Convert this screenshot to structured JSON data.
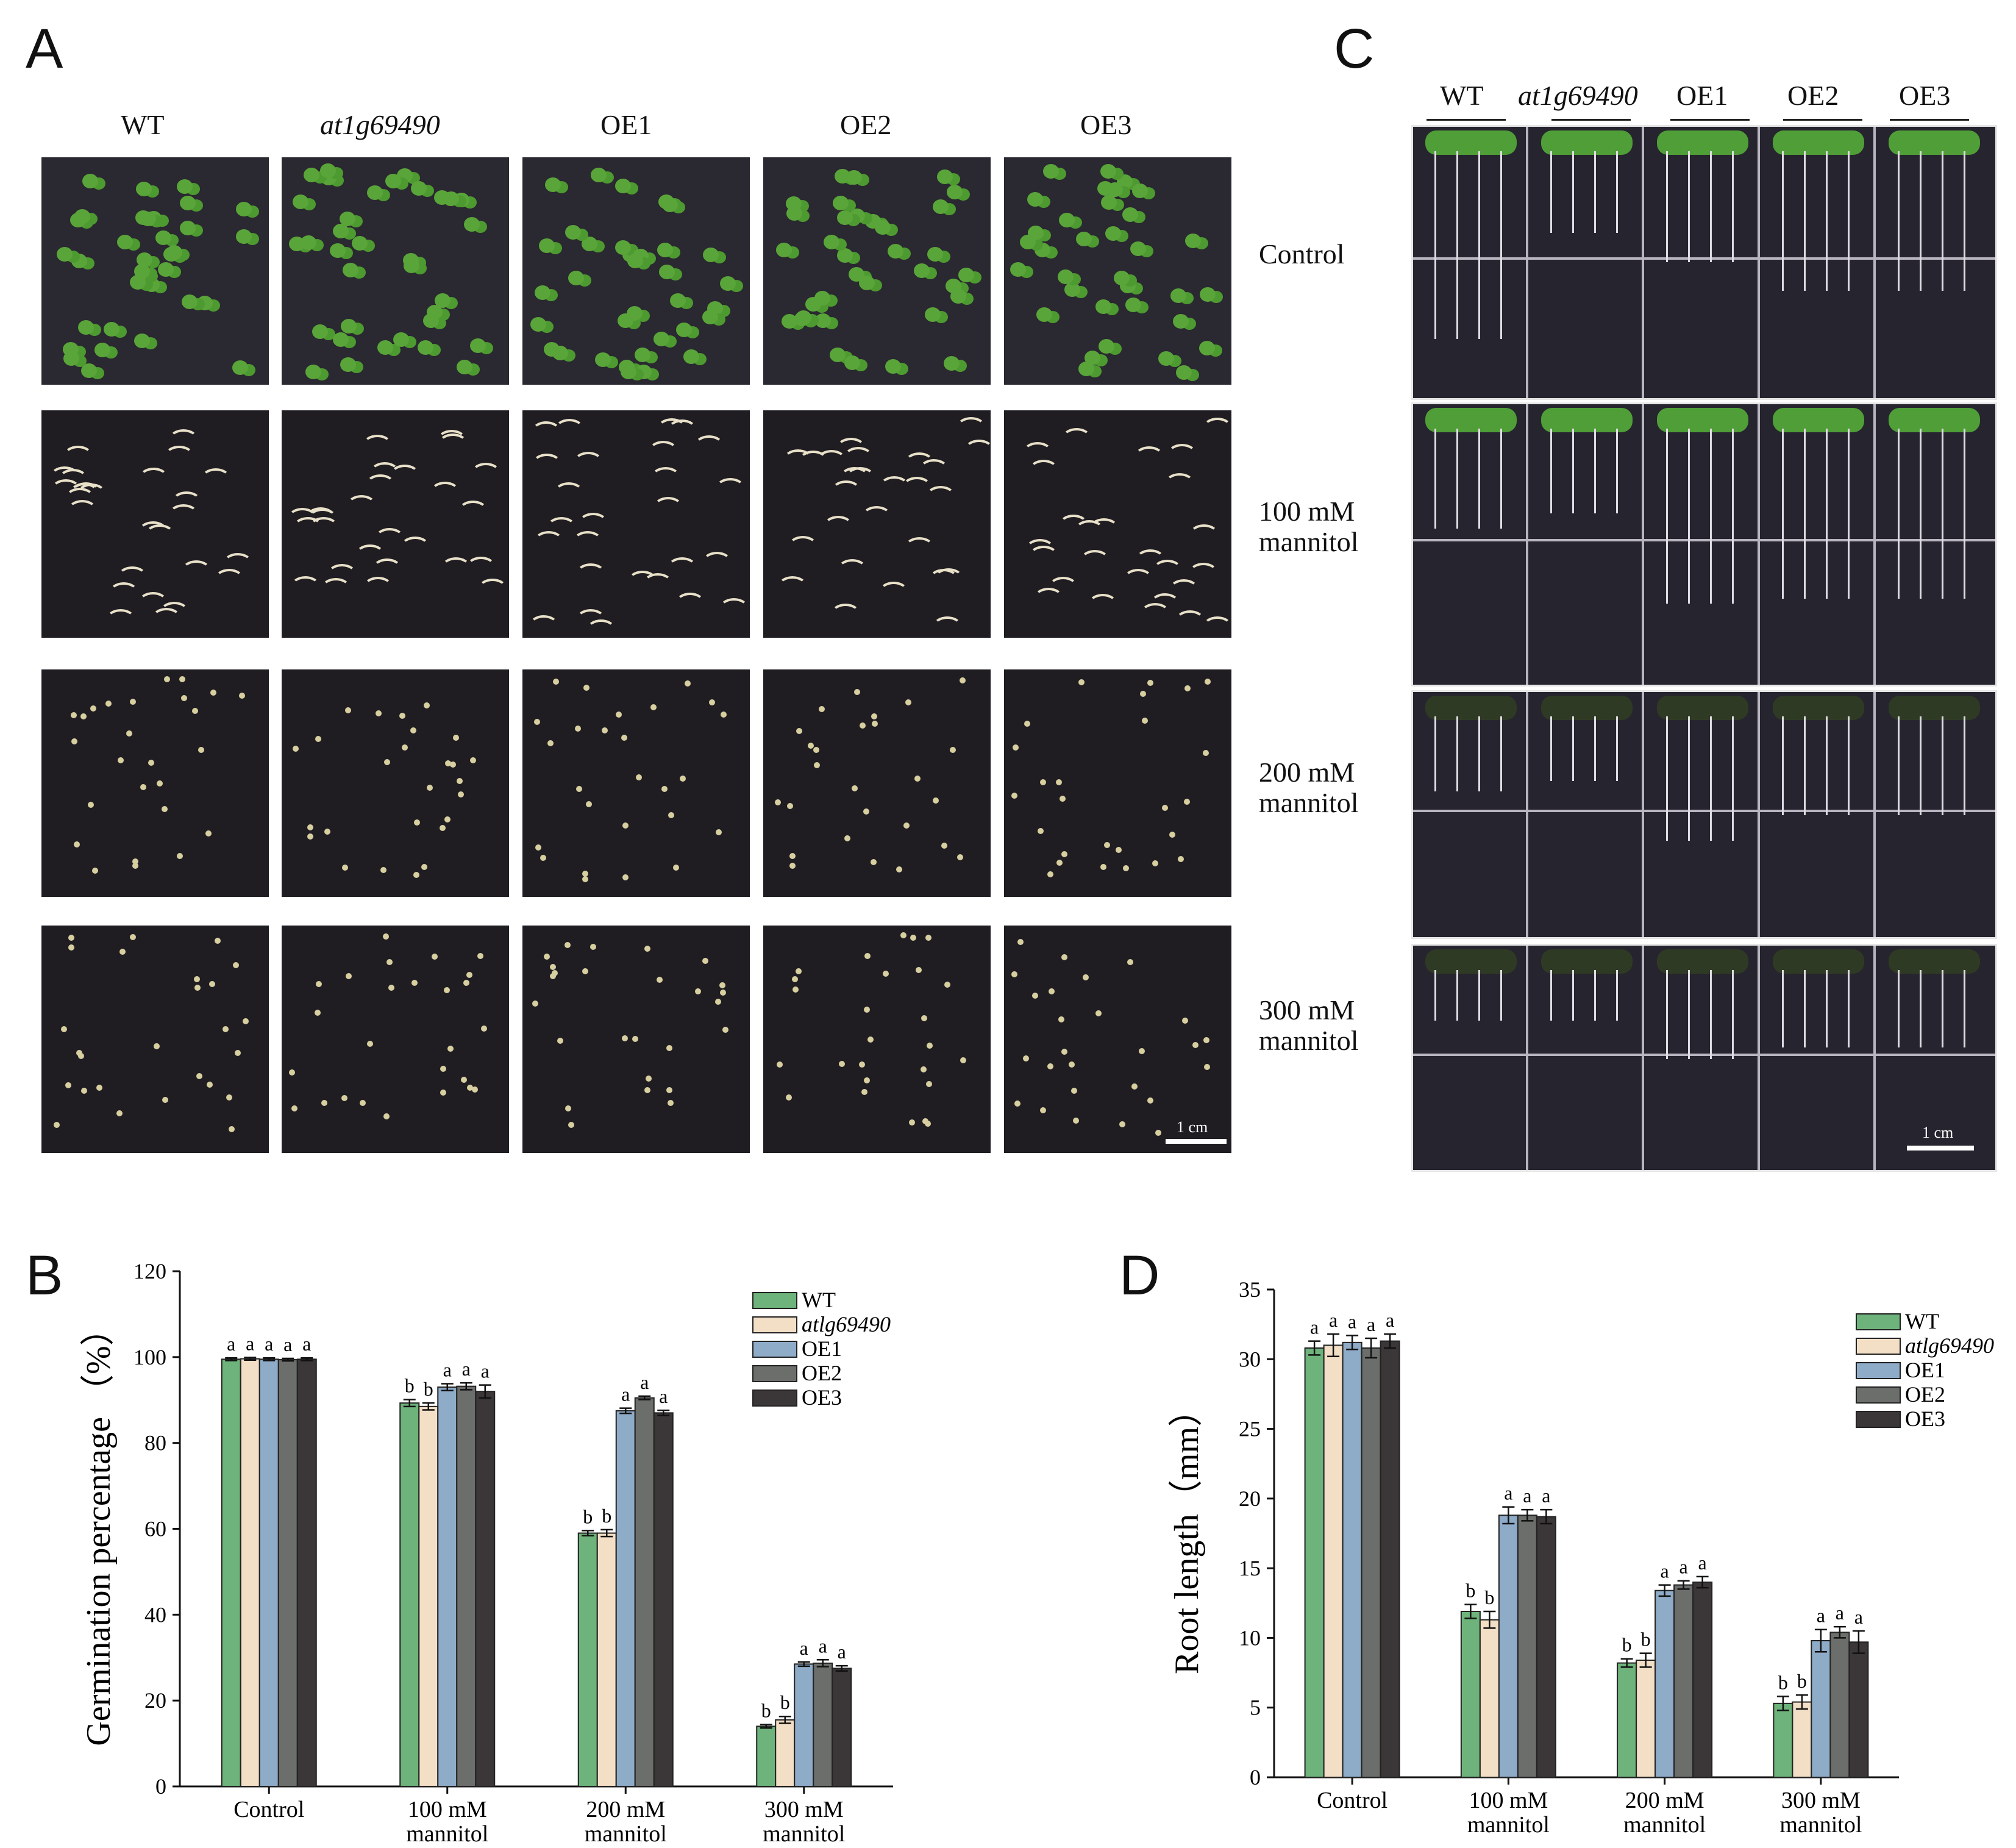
{
  "panels": {
    "a": "A",
    "b": "B",
    "c": "C",
    "d": "D"
  },
  "panelA": {
    "genotypes": [
      "WT",
      "at1g69490",
      "OE1",
      "OE2",
      "OE3"
    ],
    "conditions": [
      "Control",
      "100 mM",
      "mannitol",
      "200 mM",
      "mannitol",
      "300 mM",
      "mannitol"
    ],
    "row_labels": [
      {
        "line1": "Control",
        "line2": ""
      },
      {
        "line1": "100 mM",
        "line2": "mannitol"
      },
      {
        "line1": "200 mM",
        "line2": "mannitol"
      },
      {
        "line1": "300 mM",
        "line2": "mannitol"
      }
    ],
    "scale": "1 cm"
  },
  "panelC": {
    "genotypes": [
      "WT",
      "at1g69490",
      "OE1",
      "OE2",
      "OE3"
    ],
    "scale": "1 cm"
  },
  "chart_data": [
    {
      "type": "bar",
      "panel": "B",
      "ylabel": "Germination percentage （%）",
      "xlabel": "",
      "ylim": [
        0,
        120
      ],
      "yticks": [
        0,
        20,
        40,
        60,
        80,
        100,
        120
      ],
      "categories": [
        {
          "line1": "Control",
          "line2": ""
        },
        {
          "line1": "100 mM",
          "line2": "mannitol"
        },
        {
          "line1": "200 mM",
          "line2": "mannitol"
        },
        {
          "line1": "300 mM",
          "line2": "mannitol"
        }
      ],
      "legend_position": "top-right",
      "series": [
        {
          "name": "WT",
          "color": "#6db37b",
          "values": [
            99.5,
            89.3,
            59.0,
            14.0
          ],
          "errors": [
            0.3,
            0.8,
            0.6,
            0.4
          ],
          "letters": [
            "a",
            "b",
            "b",
            "b"
          ]
        },
        {
          "name": "atlg69490",
          "color": "#f3dfc6",
          "values": [
            99.6,
            88.5,
            59.0,
            15.5
          ],
          "errors": [
            0.3,
            0.8,
            0.8,
            0.8
          ],
          "letters": [
            "a",
            "b",
            "b",
            "b"
          ]
        },
        {
          "name": "OE1",
          "color": "#8eabc8",
          "values": [
            99.5,
            93.0,
            87.5,
            28.5
          ],
          "errors": [
            0.3,
            0.8,
            0.6,
            0.5
          ],
          "letters": [
            "a",
            "a",
            "a",
            "a"
          ]
        },
        {
          "name": "OE2",
          "color": "#6b6e6b",
          "values": [
            99.4,
            93.2,
            90.5,
            28.7
          ],
          "errors": [
            0.3,
            0.8,
            0.4,
            0.8
          ],
          "letters": [
            "a",
            "a",
            "a",
            "a"
          ]
        },
        {
          "name": "OE3",
          "color": "#3b3637",
          "values": [
            99.5,
            92.0,
            87.0,
            27.5
          ],
          "errors": [
            0.3,
            1.5,
            0.6,
            0.6
          ],
          "letters": [
            "a",
            "a",
            "a",
            "a"
          ]
        }
      ]
    },
    {
      "type": "bar",
      "panel": "D",
      "ylabel": "Root length（mm）",
      "xlabel": "",
      "ylim": [
        0,
        35
      ],
      "yticks": [
        0,
        5,
        10,
        15,
        20,
        25,
        30,
        35
      ],
      "categories": [
        {
          "line1": "Control",
          "line2": ""
        },
        {
          "line1": "100 mM",
          "line2": "mannitol"
        },
        {
          "line1": "200 mM",
          "line2": "mannitol"
        },
        {
          "line1": "300 mM",
          "line2": "mannitol"
        }
      ],
      "legend_position": "top-right",
      "series": [
        {
          "name": "WT",
          "color": "#6db37b",
          "values": [
            30.8,
            11.9,
            8.2,
            5.3
          ],
          "errors": [
            0.5,
            0.5,
            0.3,
            0.5
          ],
          "letters": [
            "a",
            "b",
            "b",
            "b"
          ]
        },
        {
          "name": "atlg69490",
          "color": "#f3dfc6",
          "values": [
            31.0,
            11.3,
            8.4,
            5.4
          ],
          "errors": [
            0.8,
            0.6,
            0.5,
            0.5
          ],
          "letters": [
            "a",
            "b",
            "b",
            "b"
          ]
        },
        {
          "name": "OE1",
          "color": "#8eabc8",
          "values": [
            31.2,
            18.8,
            13.4,
            9.8
          ],
          "errors": [
            0.5,
            0.6,
            0.4,
            0.8
          ],
          "letters": [
            "a",
            "a",
            "a",
            "a"
          ]
        },
        {
          "name": "OE2",
          "color": "#6b6e6b",
          "values": [
            30.8,
            18.8,
            13.8,
            10.4
          ],
          "errors": [
            0.7,
            0.4,
            0.3,
            0.4
          ],
          "letters": [
            "a",
            "a",
            "a",
            "a"
          ]
        },
        {
          "name": "OE3",
          "color": "#3b3637",
          "values": [
            31.3,
            18.7,
            14.0,
            9.7
          ],
          "errors": [
            0.5,
            0.5,
            0.4,
            0.8
          ],
          "letters": [
            "a",
            "a",
            "a",
            "a"
          ]
        }
      ]
    }
  ]
}
